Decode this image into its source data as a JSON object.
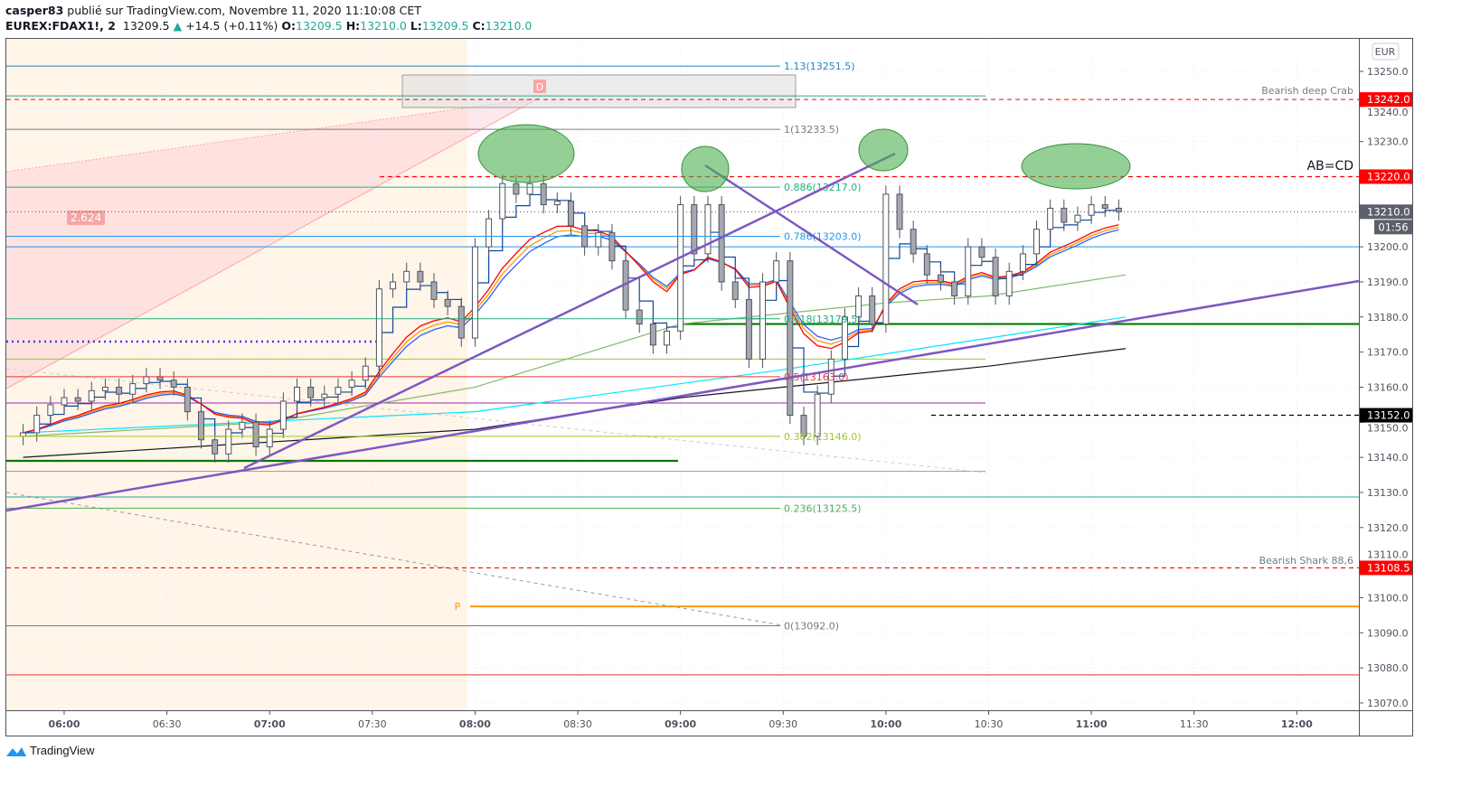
{
  "header": {
    "author": "casper83",
    "published_text": "publié sur TradingView.com, Novembre 11, 2020 11:10:08 CET",
    "symbol": "EUREX:FDAX1!, 2",
    "last": "13209.5",
    "change": "+14.5 (+0.11%)",
    "o_label": "O:",
    "o": "13209.5",
    "h_label": "H:",
    "h": "13210.0",
    "l_label": "L:",
    "l": "13209.5",
    "c_label": "C:",
    "c": "13210.0"
  },
  "currency": "EUR",
  "price_axis": {
    "ticks": [
      "13250.0",
      "13240.0",
      "13230.0",
      "13220.0",
      "13210.0",
      "13200.0",
      "13190.0",
      "13180.0",
      "13170.0",
      "13160.0",
      "13150.0",
      "13140.0",
      "13130.0",
      "13120.0",
      "13110.0",
      "13100.0",
      "13090.0",
      "13080.0",
      "13070.0"
    ],
    "badges": [
      {
        "price": 13242.0,
        "label": "13242.0",
        "color": "#ff0000"
      },
      {
        "price": 13220.0,
        "label": "13220.0",
        "color": "#ff0000"
      },
      {
        "price": 13210.0,
        "label": "13210.0",
        "color": "#5d606b"
      },
      {
        "price": 13152.0,
        "label": "13152.0",
        "color": "#000000"
      },
      {
        "price": 13108.5,
        "label": "13108.5",
        "color": "#ff0000"
      }
    ],
    "countdown": "01:56"
  },
  "time_axis": {
    "ticks": [
      {
        "t": "06:00",
        "bold": true
      },
      {
        "t": "06:30",
        "bold": false
      },
      {
        "t": "07:00",
        "bold": true
      },
      {
        "t": "07:30",
        "bold": false
      },
      {
        "t": "08:00",
        "bold": true
      },
      {
        "t": "08:30",
        "bold": false
      },
      {
        "t": "09:00",
        "bold": true
      },
      {
        "t": "09:30",
        "bold": false
      },
      {
        "t": "10:00",
        "bold": true
      },
      {
        "t": "10:30",
        "bold": false
      },
      {
        "t": "11:00",
        "bold": true
      },
      {
        "t": "11:30",
        "bold": false
      },
      {
        "t": "12:00",
        "bold": true
      }
    ]
  },
  "chart_data": {
    "type": "candlestick",
    "interval": "2",
    "times": [
      "05:48",
      "05:52",
      "05:56",
      "06:00",
      "06:04",
      "06:08",
      "06:12",
      "06:16",
      "06:20",
      "06:24",
      "06:28",
      "06:32",
      "06:36",
      "06:40",
      "06:44",
      "06:48",
      "06:52",
      "06:56",
      "07:00",
      "07:04",
      "07:08",
      "07:12",
      "07:16",
      "07:20",
      "07:24",
      "07:28",
      "07:32",
      "07:36",
      "07:40",
      "07:44",
      "07:48",
      "07:52",
      "07:56",
      "08:00",
      "08:04",
      "08:08",
      "08:12",
      "08:16",
      "08:20",
      "08:24",
      "08:28",
      "08:32",
      "08:36",
      "08:40",
      "08:44",
      "08:48",
      "08:52",
      "08:56",
      "09:00",
      "09:04",
      "09:08",
      "09:12",
      "09:16",
      "09:20",
      "09:24",
      "09:28",
      "09:32",
      "09:36",
      "09:40",
      "09:44",
      "09:48",
      "09:52",
      "09:56",
      "10:00",
      "10:04",
      "10:08",
      "10:12",
      "10:16",
      "10:20",
      "10:24",
      "10:28",
      "10:32",
      "10:36",
      "10:40",
      "10:44",
      "10:48",
      "10:52",
      "10:56",
      "11:00",
      "11:04",
      "11:08"
    ],
    "closes": [
      13147,
      13152,
      13155,
      13157,
      13156,
      13159,
      13160,
      13158,
      13161,
      13163,
      13162,
      13160,
      13153,
      13145,
      13141,
      13148,
      13150,
      13143,
      13148,
      13156,
      13160,
      13157,
      13158,
      13160,
      13162,
      13166,
      13188,
      13190,
      13193,
      13190,
      13185,
      13183,
      13174,
      13200,
      13208,
      13218,
      13215,
      13218,
      13212,
      13213,
      13206,
      13200,
      13204,
      13196,
      13182,
      13178,
      13172,
      13176,
      13212,
      13198,
      13212,
      13190,
      13185,
      13168,
      13190,
      13196,
      13152,
      13146,
      13158,
      13168,
      13180,
      13186,
      13178,
      13215,
      13205,
      13198,
      13192,
      13190,
      13186,
      13200,
      13197,
      13186,
      13193,
      13198,
      13205,
      13211,
      13207,
      13209,
      13212,
      13211,
      13210
    ],
    "ylim": [
      13065,
      13258
    ],
    "moving_averages": [
      {
        "color": "#00e5ff",
        "points": [
          [
            "05:48",
            13147
          ],
          [
            "08:00",
            13153
          ],
          [
            "09:30",
            13165
          ],
          [
            "10:30",
            13174
          ],
          [
            "11:10",
            13180
          ]
        ]
      },
      {
        "color": "#131722",
        "points": [
          [
            "05:48",
            13140
          ],
          [
            "08:00",
            13148
          ],
          [
            "09:00",
            13157
          ],
          [
            "10:30",
            13166
          ],
          [
            "11:10",
            13171
          ]
        ]
      },
      {
        "color": "#81b96b",
        "points": [
          [
            "05:48",
            13146
          ],
          [
            "07:00",
            13150
          ],
          [
            "08:00",
            13160
          ],
          [
            "09:00",
            13178
          ],
          [
            "10:00",
            13184
          ],
          [
            "10:30",
            13186
          ],
          [
            "11:10",
            13192
          ]
        ]
      }
    ]
  },
  "fib_levels": [
    {
      "label": "1.13(13251.5)",
      "price": 13251.5,
      "color": "#1e88c8"
    },
    {
      "label": "1(13233.5)",
      "price": 13233.5,
      "color": "#787b86"
    },
    {
      "label": "0.886(13217.0)",
      "price": 13217.0,
      "color": "#22b07d"
    },
    {
      "label": "0.786(13203.0)",
      "price": 13203.0,
      "color": "#2196f3"
    },
    {
      "label": "0.618(13179.5)",
      "price": 13179.5,
      "color": "#22b07d"
    },
    {
      "label": "0.5(13163.0)",
      "price": 13163.0,
      "color": "#e53935"
    },
    {
      "label": "0.382(13146.0)",
      "price": 13146.0,
      "color": "#9ccc1e"
    },
    {
      "label": "0.236(13125.5)",
      "price": 13125.5,
      "color": "#4caf50"
    },
    {
      "label": "0(13092.0)",
      "price": 13092.0,
      "color": "#787b86"
    }
  ],
  "annotations": {
    "bearish_crab": "Bearish deep Crab",
    "abcd": "AB=CD",
    "bearish_shark": "Bearish Shark 88,6",
    "d_label": "D",
    "p_label": "P",
    "ratio_label": "2.624"
  },
  "brand": "TradingView"
}
